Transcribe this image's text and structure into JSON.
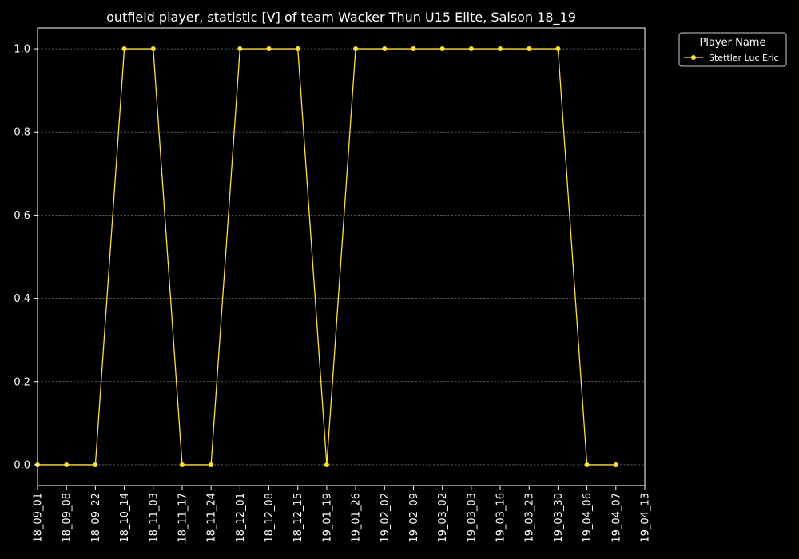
{
  "chart_data": {
    "type": "line",
    "title": "outfield player, statistic [V] of team Wacker Thun U15 Elite, Saison 18_19",
    "xlabel": "",
    "ylabel": "",
    "categories": [
      "18_09_01",
      "18_09_08",
      "18_09_22",
      "18_10_14",
      "18_11_03",
      "18_11_17",
      "18_11_24",
      "18_12_01",
      "18_12_08",
      "18_12_15",
      "19_01_19",
      "19_01_26",
      "19_02_02",
      "19_02_09",
      "19_03_02",
      "19_03_03",
      "19_03_16",
      "19_03_23",
      "19_03_30",
      "19_04_06",
      "19_04_07",
      "19_04_13"
    ],
    "series": [
      {
        "name": "Stettler Luc Eric",
        "color": "#ffe135",
        "values": [
          0,
          0,
          0,
          1,
          1,
          0,
          0,
          1,
          1,
          1,
          0,
          1,
          1,
          1,
          1,
          1,
          1,
          1,
          1,
          0,
          0,
          null
        ]
      }
    ],
    "ylim": [
      -0.05,
      1.05
    ],
    "yticks": [
      0.0,
      0.2,
      0.4,
      0.6,
      0.8,
      1.0
    ],
    "ytick_labels": [
      "0.0",
      "0.2",
      "0.4",
      "0.6",
      "0.8",
      "1.0"
    ],
    "grid": "horizontal-dashed",
    "legend": {
      "title": "Player Name",
      "placement": "outside-top-right"
    }
  }
}
